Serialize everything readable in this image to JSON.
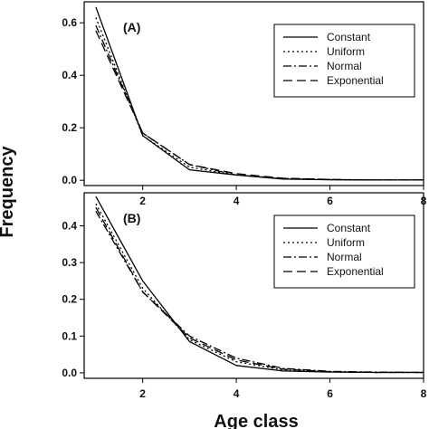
{
  "figure": {
    "xlabel": "Age class",
    "ylabel": "Frequency"
  },
  "chart_data": [
    {
      "type": "line",
      "panel_label": "(A)",
      "x": [
        1,
        2,
        3,
        4,
        5,
        6,
        7,
        8
      ],
      "xlim": [
        0.75,
        8
      ],
      "ylim": [
        -0.02,
        0.68
      ],
      "xticks": [
        2,
        4,
        6,
        8
      ],
      "yticks": [
        0.0,
        0.2,
        0.4,
        0.6
      ],
      "ytick_labels": [
        "0.0",
        "0.2",
        "0.4",
        "0.6"
      ],
      "grid": false,
      "legend_position": "top-right",
      "series": [
        {
          "name": "Constant",
          "style": "solid",
          "values": [
            0.66,
            0.17,
            0.04,
            0.02,
            0.005,
            0.002,
            0.001,
            0.001
          ]
        },
        {
          "name": "Uniform",
          "style": "dotted",
          "values": [
            0.62,
            0.17,
            0.05,
            0.02,
            0.006,
            0.002,
            0.001,
            0.001
          ]
        },
        {
          "name": "Normal",
          "style": "dashdot",
          "values": [
            0.59,
            0.18,
            0.06,
            0.02,
            0.007,
            0.003,
            0.001,
            0.001
          ]
        },
        {
          "name": "Exponential",
          "style": "dashed",
          "values": [
            0.57,
            0.18,
            0.06,
            0.025,
            0.008,
            0.003,
            0.001,
            0.001
          ]
        }
      ]
    },
    {
      "type": "line",
      "panel_label": "(B)",
      "x": [
        1,
        2,
        3,
        4,
        5,
        6,
        7,
        8
      ],
      "xlim": [
        0.75,
        8
      ],
      "ylim": [
        -0.015,
        0.49
      ],
      "xticks": [
        2,
        4,
        6,
        8
      ],
      "yticks": [
        0.0,
        0.1,
        0.2,
        0.3,
        0.4
      ],
      "ytick_labels": [
        "0.0",
        "0.1",
        "0.2",
        "0.3",
        "0.4"
      ],
      "grid": false,
      "legend_position": "top-right",
      "series": [
        {
          "name": "Constant",
          "style": "solid",
          "values": [
            0.48,
            0.25,
            0.085,
            0.02,
            0.005,
            0.002,
            0.001,
            0.001
          ]
        },
        {
          "name": "Uniform",
          "style": "dotted",
          "values": [
            0.46,
            0.23,
            0.09,
            0.03,
            0.008,
            0.003,
            0.001,
            0.001
          ]
        },
        {
          "name": "Normal",
          "style": "dashdot",
          "values": [
            0.44,
            0.22,
            0.1,
            0.04,
            0.012,
            0.004,
            0.002,
            0.001
          ]
        },
        {
          "name": "Exponential",
          "style": "dashed",
          "values": [
            0.45,
            0.22,
            0.095,
            0.035,
            0.01,
            0.003,
            0.001,
            0.001
          ]
        }
      ]
    }
  ]
}
